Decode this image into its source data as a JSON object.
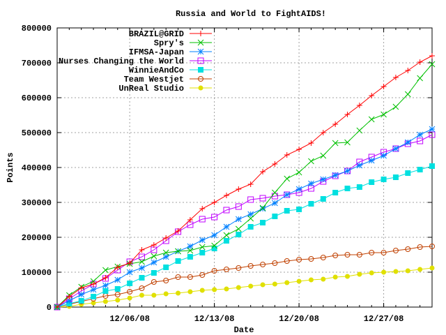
{
  "chart_data": {
    "type": "line",
    "title": "Russia and World to FightAIDS!",
    "xlabel": "Date",
    "ylabel": "Points",
    "ylim": [
      0,
      800000
    ],
    "yticks": [
      0,
      100000,
      200000,
      300000,
      400000,
      500000,
      600000,
      700000,
      800000
    ],
    "ytick_labels": [
      "0",
      "100000",
      "200000",
      "300000",
      "400000",
      "500000",
      "600000",
      "700000",
      "800000"
    ],
    "x_start": "11/30/08",
    "x_end": "12/31/08",
    "xtick_labels": [
      "12/06/08",
      "12/13/08",
      "12/20/08",
      "12/27/08"
    ],
    "xtick_day_index": [
      6,
      13,
      20,
      27
    ],
    "grid": true,
    "legend_placement": "top-left inside",
    "x_day_index": [
      0,
      1,
      2,
      3,
      4,
      5,
      6,
      7,
      8,
      9,
      10,
      11,
      12,
      13,
      14,
      15,
      16,
      17,
      18,
      19,
      20,
      21,
      22,
      23,
      24,
      25,
      26,
      27,
      28,
      29,
      30,
      31
    ],
    "series": [
      {
        "name": "BRAZIL@GRID",
        "color": "#ff0000",
        "marker": "plus",
        "values": [
          0,
          30000,
          55000,
          66000,
          84000,
          114000,
          126000,
          164000,
          178000,
          198000,
          218000,
          250000,
          282000,
          300000,
          320000,
          338000,
          352000,
          388000,
          410000,
          436000,
          452000,
          470000,
          500000,
          524000,
          552000,
          578000,
          606000,
          632000,
          658000,
          678000,
          702000,
          720000
        ]
      },
      {
        "name": "Spry's",
        "color": "#00c000",
        "marker": "cross",
        "values": [
          0,
          34000,
          58000,
          74000,
          106000,
          116000,
          124000,
          130000,
          146000,
          156000,
          160000,
          162000,
          172000,
          176000,
          206000,
          224000,
          254000,
          284000,
          328000,
          368000,
          386000,
          418000,
          434000,
          470000,
          472000,
          506000,
          538000,
          552000,
          574000,
          610000,
          656000,
          696000
        ]
      },
      {
        "name": "IFMSA-Japan",
        "color": "#0080ff",
        "marker": "star",
        "values": [
          0,
          18000,
          36000,
          50000,
          62000,
          78000,
          100000,
          112000,
          128000,
          144000,
          160000,
          174000,
          192000,
          206000,
          230000,
          252000,
          266000,
          282000,
          298000,
          322000,
          338000,
          354000,
          366000,
          378000,
          390000,
          406000,
          420000,
          434000,
          454000,
          472000,
          494000,
          510000
        ]
      },
      {
        "name": "Nurses Changing the World",
        "color": "#c000ff",
        "marker": "square-open",
        "values": [
          0,
          24000,
          46000,
          66000,
          82000,
          106000,
          130000,
          144000,
          164000,
          190000,
          216000,
          236000,
          252000,
          258000,
          278000,
          288000,
          308000,
          312000,
          318000,
          322000,
          328000,
          340000,
          360000,
          376000,
          390000,
          416000,
          430000,
          444000,
          454000,
          468000,
          476000,
          494000
        ]
      },
      {
        "name": "WinnieAndCo",
        "color": "#00e0e0",
        "marker": "square-filled",
        "values": [
          0,
          10000,
          18000,
          30000,
          46000,
          52000,
          68000,
          84000,
          98000,
          114000,
          132000,
          144000,
          156000,
          168000,
          190000,
          208000,
          230000,
          242000,
          260000,
          276000,
          280000,
          296000,
          310000,
          328000,
          340000,
          344000,
          358000,
          366000,
          372000,
          384000,
          394000,
          404000
        ]
      },
      {
        "name": "Team Westjet",
        "color": "#c04000",
        "marker": "circle-open",
        "values": [
          0,
          8000,
          16000,
          24000,
          32000,
          36000,
          44000,
          54000,
          72000,
          76000,
          86000,
          86000,
          92000,
          104000,
          108000,
          112000,
          118000,
          122000,
          126000,
          132000,
          136000,
          138000,
          142000,
          148000,
          150000,
          150000,
          156000,
          156000,
          162000,
          166000,
          172000,
          174000
        ]
      },
      {
        "name": "UnReal Studio",
        "color": "#e0e000",
        "marker": "circle-filled",
        "values": [
          0,
          2000,
          8000,
          12000,
          16000,
          20000,
          26000,
          34000,
          34000,
          38000,
          40000,
          44000,
          48000,
          50000,
          52000,
          56000,
          60000,
          64000,
          66000,
          70000,
          74000,
          78000,
          80000,
          86000,
          88000,
          94000,
          98000,
          100000,
          102000,
          104000,
          108000,
          112000
        ]
      }
    ]
  }
}
